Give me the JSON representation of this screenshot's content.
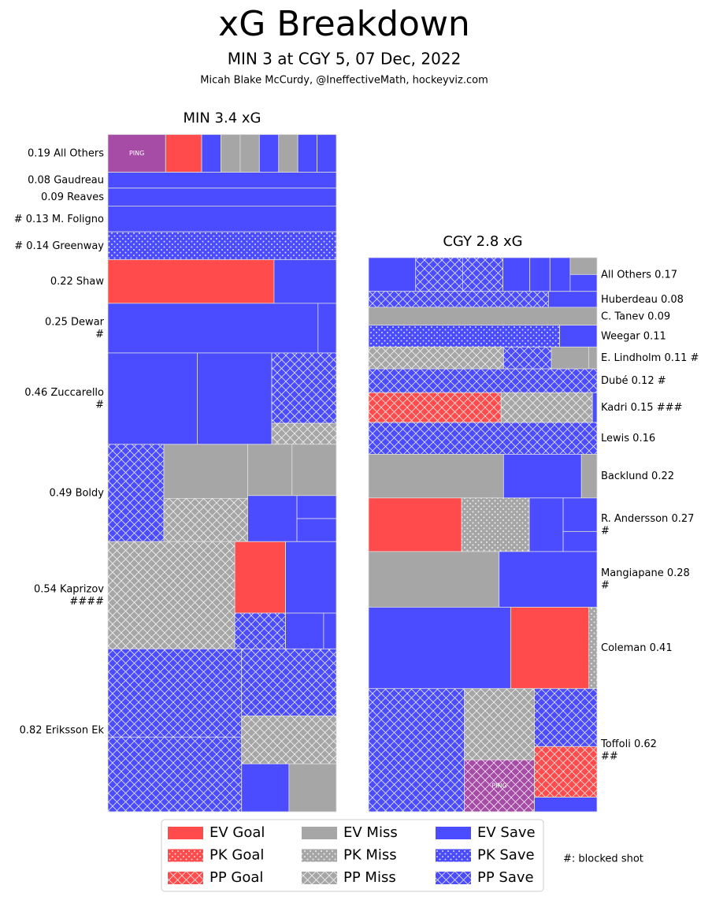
{
  "chart_data": {
    "type": "treemap",
    "title": "xG Breakdown",
    "subtitle": "MIN 3 at CGY 5, 07 Dec, 2022",
    "credit": "Micah Blake McCurdy, @IneffectiveMath, hockeyviz.com",
    "legend": {
      "items": [
        {
          "name": "EV Goal",
          "color": "#ff4b4b",
          "pattern": "solid"
        },
        {
          "name": "PK Goal",
          "color": "#ff4b4b",
          "pattern": "dots"
        },
        {
          "name": "PP Goal",
          "color": "#ff4b4b",
          "pattern": "cross"
        },
        {
          "name": "EV Miss",
          "color": "#a6a6a6",
          "pattern": "solid"
        },
        {
          "name": "PK Miss",
          "color": "#a6a6a6",
          "pattern": "dots"
        },
        {
          "name": "PP Miss",
          "color": "#a6a6a6",
          "pattern": "cross"
        },
        {
          "name": "EV Save",
          "color": "#4b4bff",
          "pattern": "solid"
        },
        {
          "name": "PK Save",
          "color": "#4b4bff",
          "pattern": "dots"
        },
        {
          "name": "PP Save",
          "color": "#4b4bff",
          "pattern": "cross"
        }
      ],
      "note": "#: blocked shot"
    },
    "panels": [
      {
        "title": "MIN 3.4 xG",
        "side": "left",
        "players": [
          {
            "name": "All Others",
            "xg": 0.19,
            "shots": [
              {
                "kind": "EV Goal",
                "xg": 0.048,
                "color": "#a64ca6",
                "label": "PING"
              },
              {
                "kind": "EV Goal",
                "xg": 0.03
              },
              {
                "kind": "EV Save",
                "xg": 0.016
              },
              {
                "kind": "EV Miss",
                "xg": 0.016
              },
              {
                "kind": "EV Miss",
                "xg": 0.016
              },
              {
                "kind": "EV Save",
                "xg": 0.016
              },
              {
                "kind": "EV Miss",
                "xg": 0.016
              },
              {
                "kind": "EV Save",
                "xg": 0.016
              },
              {
                "kind": "EV Save",
                "xg": 0.016
              }
            ]
          },
          {
            "name": "Gaudreau",
            "xg": 0.08,
            "shots": [
              {
                "kind": "EV Save",
                "xg": 0.08
              }
            ]
          },
          {
            "name": "Reaves",
            "xg": 0.09,
            "shots": [
              {
                "kind": "EV Save",
                "xg": 0.09
              }
            ]
          },
          {
            "name": "M. Foligno",
            "xg": 0.13,
            "blocked": "#",
            "shots": [
              {
                "kind": "EV Save",
                "xg": 0.13
              }
            ]
          },
          {
            "name": "Greenway",
            "xg": 0.14,
            "blocked": "#",
            "shots": [
              {
                "kind": "PK Save",
                "xg": 0.14
              }
            ]
          },
          {
            "name": "Shaw",
            "xg": 0.22,
            "shots": [
              {
                "kind": "EV Goal",
                "xg": 0.16
              },
              {
                "kind": "EV Save",
                "xg": 0.06
              }
            ]
          },
          {
            "name": "Dewar",
            "xg": 0.25,
            "blocked": "#",
            "shots": [
              {
                "kind": "EV Save",
                "xg": 0.23
              },
              {
                "kind": "EV Save",
                "xg": 0.02
              }
            ]
          },
          {
            "name": "Zuccarello",
            "xg": 0.46,
            "blocked": "#",
            "shots": [
              {
                "kind": "EV Save",
                "xg": 0.18
              },
              {
                "kind": "EV Save",
                "xg": 0.15
              },
              {
                "kind": "PP Save",
                "xg": 0.1
              },
              {
                "kind": "PP Miss",
                "xg": 0.03
              }
            ]
          },
          {
            "name": "Boldy",
            "xg": 0.49,
            "shots": [
              {
                "kind": "PP Save",
                "xg": 0.12
              },
              {
                "kind": "EV Miss",
                "xg": 0.1
              },
              {
                "kind": "PP Miss",
                "xg": 0.08
              },
              {
                "kind": "EV Miss",
                "xg": 0.05
              },
              {
                "kind": "EV Miss",
                "xg": 0.05
              },
              {
                "kind": "EV Save",
                "xg": 0.05
              },
              {
                "kind": "EV Save",
                "xg": 0.02
              },
              {
                "kind": "EV Save",
                "xg": 0.02
              }
            ]
          },
          {
            "name": "Kaprizov",
            "xg": 0.54,
            "blocked": "####",
            "shots": [
              {
                "kind": "PP Miss",
                "xg": 0.3
              },
              {
                "kind": "EV Goal",
                "xg": 0.08
              },
              {
                "kind": "EV Save",
                "xg": 0.08
              },
              {
                "kind": "PP Save",
                "xg": 0.04
              },
              {
                "kind": "EV Save",
                "xg": 0.03
              },
              {
                "kind": "EV Save",
                "xg": 0.01
              }
            ]
          },
          {
            "name": "Eriksson Ek",
            "xg": 0.82,
            "shots": [
              {
                "kind": "PP Save",
                "xg": 0.26
              },
              {
                "kind": "PP Save",
                "xg": 0.22
              },
              {
                "kind": "PP Save",
                "xg": 0.14
              },
              {
                "kind": "PP Miss",
                "xg": 0.1
              },
              {
                "kind": "EV Save",
                "xg": 0.05
              },
              {
                "kind": "EV Miss",
                "xg": 0.05
              }
            ]
          }
        ]
      },
      {
        "title": "CGY 2.8 xG",
        "side": "right",
        "players": [
          {
            "name": "All Others",
            "xg": 0.17,
            "shots": [
              {
                "kind": "EV Save",
                "xg": 0.035
              },
              {
                "kind": "PP Save",
                "xg": 0.035
              },
              {
                "kind": "PP Save",
                "xg": 0.03
              },
              {
                "kind": "EV Save",
                "xg": 0.02
              },
              {
                "kind": "EV Save",
                "xg": 0.015
              },
              {
                "kind": "EV Save",
                "xg": 0.015
              },
              {
                "kind": "EV Miss",
                "xg": 0.01
              },
              {
                "kind": "EV Save",
                "xg": 0.01
              }
            ]
          },
          {
            "name": "Huberdeau",
            "xg": 0.08,
            "shots": [
              {
                "kind": "PP Save",
                "xg": 0.063
              },
              {
                "kind": "EV Save",
                "xg": 0.017
              }
            ]
          },
          {
            "name": "C. Tanev",
            "xg": 0.09,
            "shots": [
              {
                "kind": "EV Miss",
                "xg": 0.09
              }
            ]
          },
          {
            "name": "Weegar",
            "xg": 0.11,
            "shots": [
              {
                "kind": "PK Save",
                "xg": 0.092
              },
              {
                "kind": "EV Save",
                "xg": 0.018
              }
            ]
          },
          {
            "name": "E. Lindholm",
            "xg": 0.11,
            "blocked": "#",
            "shots": [
              {
                "kind": "PP Miss",
                "xg": 0.065
              },
              {
                "kind": "PP Save",
                "xg": 0.023
              },
              {
                "kind": "EV Miss",
                "xg": 0.018
              },
              {
                "kind": "EV Miss",
                "xg": 0.004
              }
            ]
          },
          {
            "name": "Dubé",
            "xg": 0.12,
            "blocked": "#",
            "shots": [
              {
                "kind": "PP Save",
                "xg": 0.12
              }
            ]
          },
          {
            "name": "Kadri",
            "xg": 0.15,
            "blocked": "###",
            "shots": [
              {
                "kind": "PP Goal",
                "xg": 0.087
              },
              {
                "kind": "PP Miss",
                "xg": 0.06
              },
              {
                "kind": "EV Save",
                "xg": 0.003
              }
            ]
          },
          {
            "name": "Lewis",
            "xg": 0.16,
            "shots": [
              {
                "kind": "PP Save",
                "xg": 0.16
              }
            ]
          },
          {
            "name": "Backlund",
            "xg": 0.22,
            "shots": [
              {
                "kind": "EV Miss",
                "xg": 0.13
              },
              {
                "kind": "EV Save",
                "xg": 0.075
              },
              {
                "kind": "EV Miss",
                "xg": 0.015
              }
            ]
          },
          {
            "name": "R. Andersson",
            "xg": 0.27,
            "blocked": "#",
            "shots": [
              {
                "kind": "EV Goal",
                "xg": 0.11
              },
              {
                "kind": "PK Miss",
                "xg": 0.08
              },
              {
                "kind": "EV Save",
                "xg": 0.04
              },
              {
                "kind": "EV Save",
                "xg": 0.025
              },
              {
                "kind": "EV Save",
                "xg": 0.015
              }
            ]
          },
          {
            "name": "Mangiapane",
            "xg": 0.28,
            "blocked": "#",
            "shots": [
              {
                "kind": "EV Miss",
                "xg": 0.16
              },
              {
                "kind": "EV Save",
                "xg": 0.12
              }
            ]
          },
          {
            "name": "Coleman",
            "xg": 0.41,
            "shots": [
              {
                "kind": "EV Save",
                "xg": 0.255
              },
              {
                "kind": "EV Goal",
                "xg": 0.14
              },
              {
                "kind": "PK Miss",
                "xg": 0.015
              }
            ]
          },
          {
            "name": "Toffoli",
            "xg": 0.62,
            "blocked": "##",
            "shots": [
              {
                "kind": "PP Save",
                "xg": 0.26
              },
              {
                "kind": "PP Miss",
                "xg": 0.11
              },
              {
                "kind": "PP Goal",
                "xg": 0.08,
                "color": "#a64ca6",
                "label": "PING"
              },
              {
                "kind": "PP Save",
                "xg": 0.08
              },
              {
                "kind": "PP Goal",
                "xg": 0.07
              },
              {
                "kind": "EV Save",
                "xg": 0.02
              }
            ]
          }
        ]
      }
    ]
  }
}
